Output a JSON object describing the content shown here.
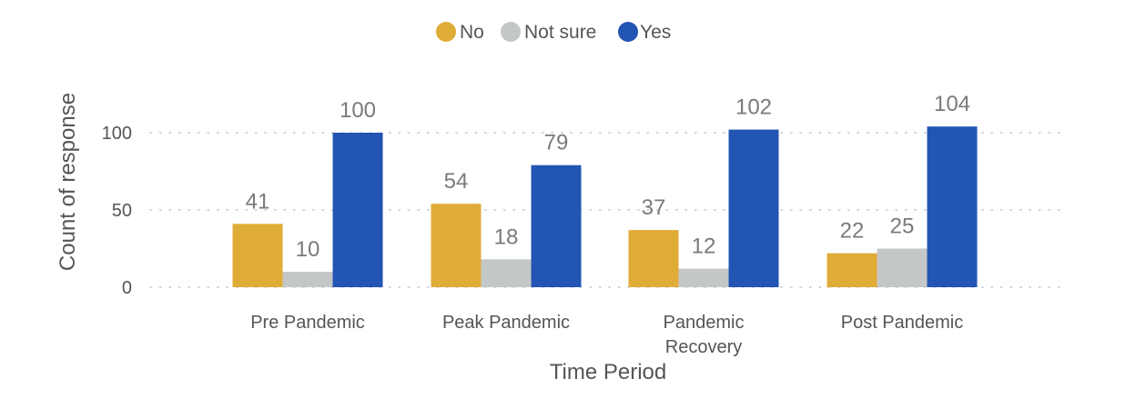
{
  "chart_data": {
    "type": "bar",
    "title": "",
    "xlabel": "Time Period",
    "ylabel": "Count of response",
    "categories": [
      [
        "Pre Pandemic"
      ],
      [
        "Peak Pandemic"
      ],
      [
        "Pandemic",
        "Recovery"
      ],
      [
        "Post Pandemic"
      ]
    ],
    "series": [
      {
        "name": "No",
        "color": "#E0AC38",
        "values": [
          41,
          54,
          37,
          22
        ]
      },
      {
        "name": "Not sure",
        "color": "#C4C7C8",
        "values": [
          10,
          18,
          12,
          25
        ]
      },
      {
        "name": "Yes",
        "color": "#2255B4",
        "values": [
          100,
          79,
          102,
          104
        ]
      }
    ],
    "ylim": [
      0,
      110
    ],
    "yticks": [
      0,
      50,
      100
    ],
    "grid": true,
    "legend_position": "top-center",
    "data_labels": true
  }
}
